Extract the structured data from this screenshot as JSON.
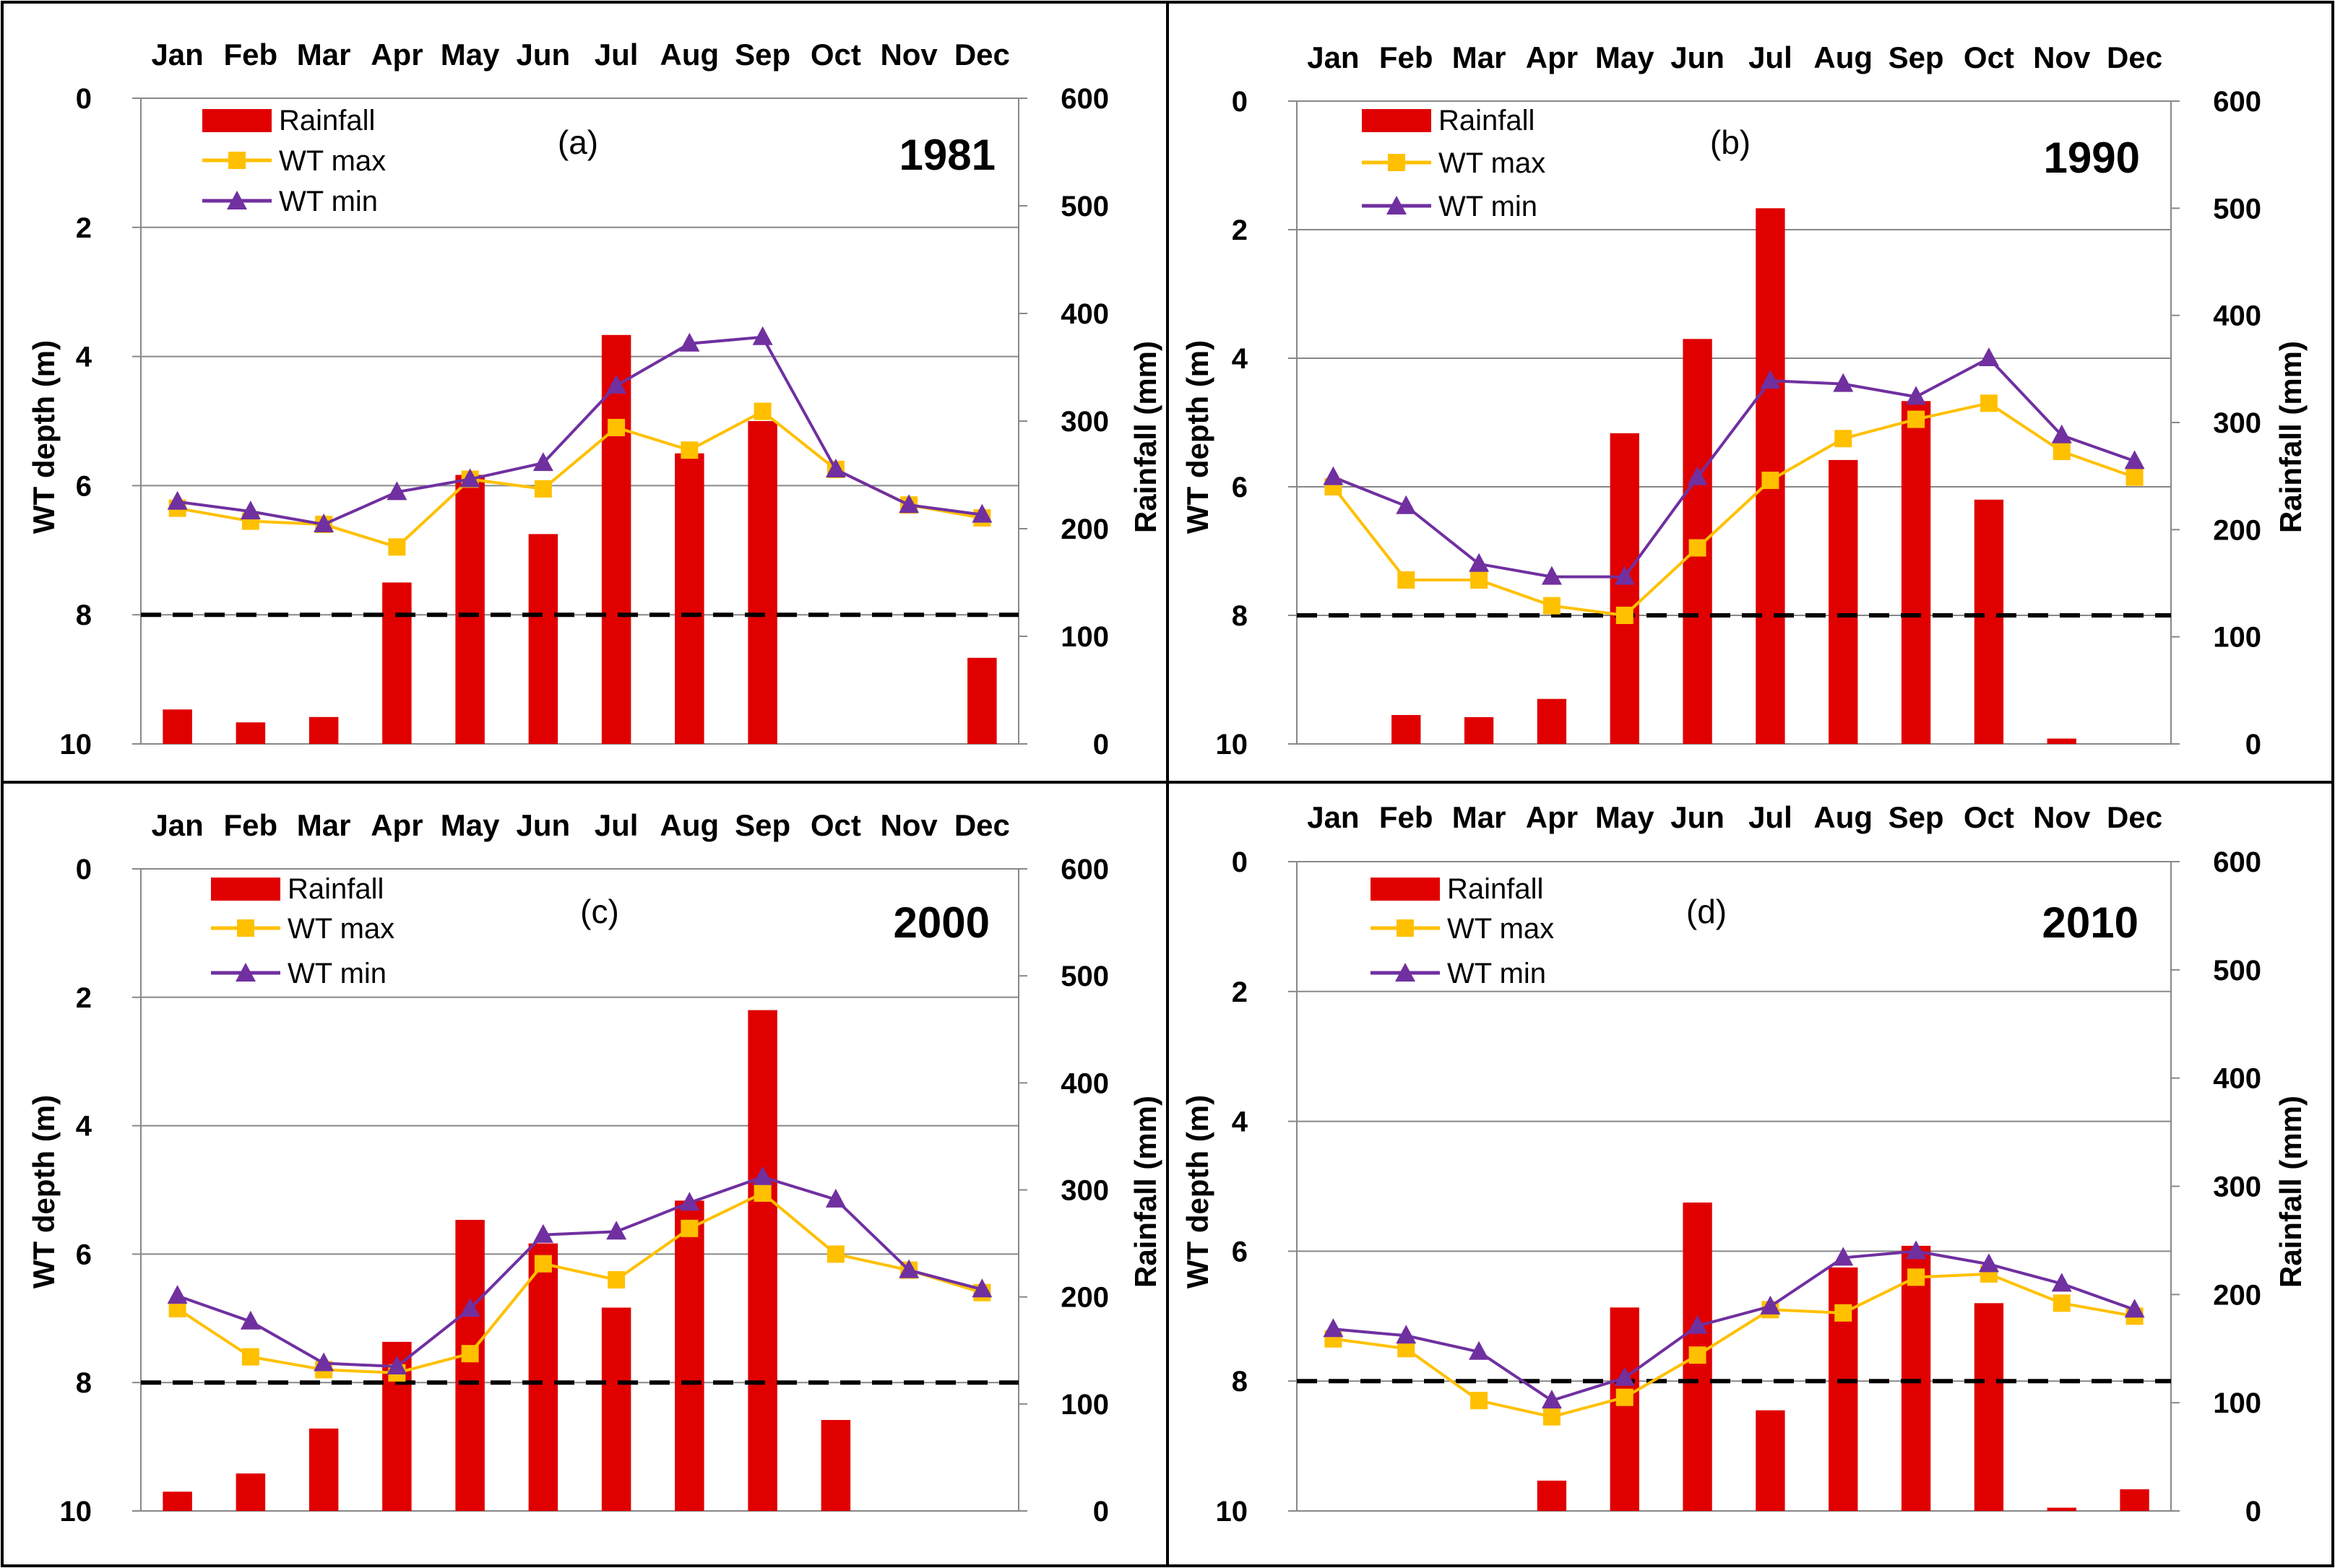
{
  "chart_data": [
    {
      "type": "bar+line",
      "panel_label": "(a)",
      "year_label": "1981",
      "categories": [
        "Jan",
        "Feb",
        "Mar",
        "Apr",
        "May",
        "Jun",
        "Jul",
        "Aug",
        "Sep",
        "Oct",
        "Nov",
        "Dec"
      ],
      "ylabel_left": "WT depth (m)",
      "ylabel_right": "Rainfall (mm)",
      "ylim_left": [
        0,
        10
      ],
      "ylim_right": [
        0,
        600
      ],
      "left_ticks": [
        "0",
        "2",
        "4",
        "6",
        "8",
        "10"
      ],
      "right_ticks": [
        "0",
        "100",
        "200",
        "300",
        "400",
        "500",
        "600"
      ],
      "left_inverted": true,
      "threshold_depth": 8,
      "legend": [
        "Rainfall",
        "WT max",
        "WT min"
      ],
      "series": [
        {
          "name": "Rainfall",
          "kind": "bar",
          "axis": "right",
          "color": "#e00000",
          "values": [
            32,
            20,
            25,
            150,
            250,
            195,
            380,
            270,
            300,
            0,
            0,
            80
          ]
        },
        {
          "name": "WT max",
          "kind": "line",
          "axis": "left",
          "color": "#ffc000",
          "values": [
            6.35,
            6.55,
            6.6,
            6.95,
            5.9,
            6.05,
            5.1,
            5.45,
            4.85,
            5.75,
            6.3,
            6.5
          ]
        },
        {
          "name": "WT min",
          "kind": "line",
          "axis": "left",
          "color": "#7030a0",
          "values": [
            6.25,
            6.4,
            6.6,
            6.1,
            5.9,
            5.65,
            4.45,
            3.8,
            3.7,
            5.75,
            6.3,
            6.45
          ]
        }
      ]
    },
    {
      "type": "bar+line",
      "panel_label": "(b)",
      "year_label": "1990",
      "categories": [
        "Jan",
        "Feb",
        "Mar",
        "Apr",
        "May",
        "Jun",
        "Jul",
        "Aug",
        "Sep",
        "Oct",
        "Nov",
        "Dec"
      ],
      "ylabel_left": "WT depth (m)",
      "ylabel_right": "Rainfall (mm)",
      "ylim_left": [
        0,
        10
      ],
      "ylim_right": [
        0,
        600
      ],
      "left_ticks": [
        "0",
        "2",
        "4",
        "6",
        "8",
        "10"
      ],
      "right_ticks": [
        "0",
        "100",
        "200",
        "300",
        "400",
        "500",
        "600"
      ],
      "left_inverted": true,
      "threshold_depth": 8,
      "legend": [
        "Rainfall",
        "WT max",
        "WT min"
      ],
      "series": [
        {
          "name": "Rainfall",
          "kind": "bar",
          "axis": "right",
          "color": "#e00000",
          "values": [
            0,
            27,
            25,
            42,
            290,
            378,
            500,
            265,
            320,
            228,
            5,
            0
          ]
        },
        {
          "name": "WT max",
          "kind": "line",
          "axis": "left",
          "color": "#ffc000",
          "values": [
            6.0,
            7.45,
            7.45,
            7.85,
            8.0,
            6.95,
            5.9,
            5.25,
            4.95,
            4.7,
            5.45,
            5.85
          ]
        },
        {
          "name": "WT min",
          "kind": "line",
          "axis": "left",
          "color": "#7030a0",
          "values": [
            5.85,
            6.3,
            7.2,
            7.4,
            7.4,
            5.85,
            4.35,
            4.4,
            4.6,
            4.0,
            5.2,
            5.6
          ]
        }
      ]
    },
    {
      "type": "bar+line",
      "panel_label": "(c)",
      "year_label": "2000",
      "categories": [
        "Jan",
        "Feb",
        "Mar",
        "Apr",
        "May",
        "Jun",
        "Jul",
        "Aug",
        "Sep",
        "Oct",
        "Nov",
        "Dec"
      ],
      "ylabel_left": "WT depth (m)",
      "ylabel_right": "Rainfall (mm)",
      "ylim_left": [
        0,
        10
      ],
      "ylim_right": [
        0,
        600
      ],
      "left_ticks": [
        "0",
        "2",
        "4",
        "6",
        "8",
        "10"
      ],
      "right_ticks": [
        "0",
        "100",
        "200",
        "300",
        "400",
        "500",
        "600"
      ],
      "left_inverted": true,
      "threshold_depth": 8,
      "legend": [
        "Rainfall",
        "WT max",
        "WT min"
      ],
      "series": [
        {
          "name": "Rainfall",
          "kind": "bar",
          "axis": "right",
          "color": "#e00000",
          "values": [
            18,
            35,
            77,
            158,
            272,
            250,
            190,
            290,
            468,
            85,
            0,
            0
          ]
        },
        {
          "name": "WT max",
          "kind": "line",
          "axis": "left",
          "color": "#ffc000",
          "values": [
            6.85,
            7.6,
            7.8,
            7.85,
            7.55,
            6.15,
            6.4,
            5.6,
            5.05,
            6.0,
            6.25,
            6.6
          ]
        },
        {
          "name": "WT min",
          "kind": "line",
          "axis": "left",
          "color": "#7030a0",
          "values": [
            6.65,
            7.05,
            7.7,
            7.75,
            6.85,
            5.7,
            5.65,
            5.2,
            4.8,
            5.15,
            6.25,
            6.55
          ]
        }
      ]
    },
    {
      "type": "bar+line",
      "panel_label": "(d)",
      "year_label": "2010",
      "categories": [
        "Jan",
        "Feb",
        "Mar",
        "Apr",
        "May",
        "Jun",
        "Jul",
        "Aug",
        "Sep",
        "Oct",
        "Nov",
        "Dec"
      ],
      "ylabel_left": "WT depth (m)",
      "ylabel_right": "Rainfall (mm)",
      "ylim_left": [
        0,
        10
      ],
      "ylim_right": [
        0,
        600
      ],
      "left_ticks": [
        "0",
        "2",
        "4",
        "6",
        "8",
        "10"
      ],
      "right_ticks": [
        "0",
        "100",
        "200",
        "300",
        "400",
        "500",
        "600"
      ],
      "left_inverted": true,
      "threshold_depth": 8,
      "legend": [
        "Rainfall",
        "WT max",
        "WT min"
      ],
      "series": [
        {
          "name": "Rainfall",
          "kind": "bar",
          "axis": "right",
          "color": "#e00000",
          "values": [
            0,
            0,
            0,
            28,
            188,
            285,
            93,
            225,
            245,
            192,
            3,
            20
          ]
        },
        {
          "name": "WT max",
          "kind": "line",
          "axis": "left",
          "color": "#ffc000",
          "values": [
            7.35,
            7.5,
            8.3,
            8.55,
            8.25,
            7.6,
            6.9,
            6.95,
            6.4,
            6.35,
            6.8,
            7.0
          ]
        },
        {
          "name": "WT min",
          "kind": "line",
          "axis": "left",
          "color": "#7030a0",
          "values": [
            7.2,
            7.3,
            7.55,
            8.3,
            7.95,
            7.15,
            6.85,
            6.1,
            6.0,
            6.2,
            6.5,
            6.9
          ]
        }
      ]
    }
  ]
}
